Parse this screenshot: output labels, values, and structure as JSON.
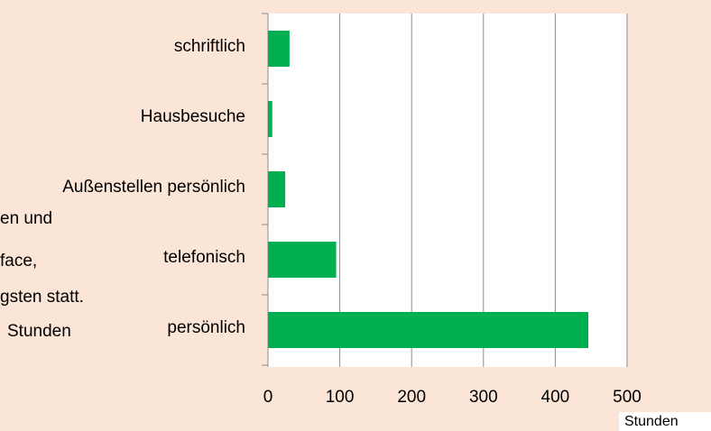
{
  "chart_data": {
    "type": "barh",
    "categories": [
      "schriftlich",
      "Hausbesuche",
      "Außenstellen persönlich",
      "telefonisch",
      "persönlich"
    ],
    "values": [
      30,
      6,
      24,
      95,
      446
    ],
    "color": "#00b050",
    "xlim": [
      0,
      500
    ],
    "xticks": [
      0,
      100,
      200,
      300,
      400,
      500
    ],
    "x_label": "Stunden",
    "grid": true,
    "background_text": [
      "en und",
      "face,",
      "gsten statt.",
      "Stunden"
    ]
  }
}
